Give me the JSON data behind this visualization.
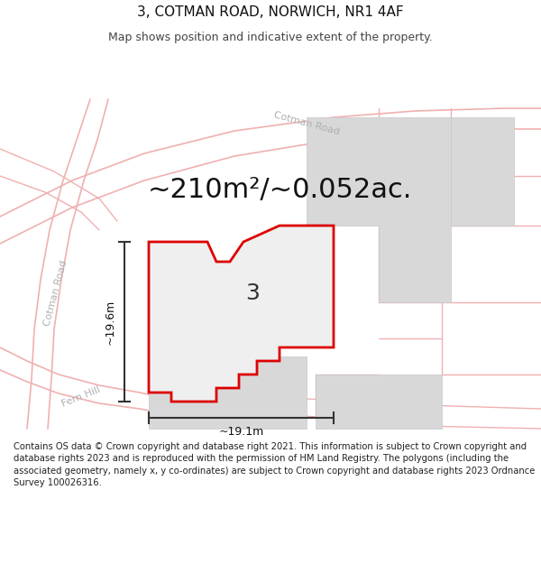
{
  "title": "3, COTMAN ROAD, NORWICH, NR1 4AF",
  "subtitle": "Map shows position and indicative extent of the property.",
  "area_text": "~210m²/~0.052ac.",
  "label_3": "3",
  "dim_width": "~19.1m",
  "dim_height": "~19.6m",
  "footer": "Contains OS data © Crown copyright and database right 2021. This information is subject to Crown copyright and database rights 2023 and is reproduced with the permission of HM Land Registry. The polygons (including the associated geometry, namely x, y co-ordinates) are subject to Crown copyright and database rights 2023 Ordnance Survey 100026316.",
  "bg_color": "#ffffff",
  "map_bg": "#ffffff",
  "red_outline": "#dd0000",
  "gray_fill": "#d8d8d8",
  "road_line_color": "#f0b0b0",
  "road_text_color": "#b0b0b0",
  "dim_line_color": "#333333",
  "title_fontsize": 11,
  "subtitle_fontsize": 9,
  "footer_fontsize": 7.2,
  "area_fontsize": 22,
  "label_fontsize": 18
}
